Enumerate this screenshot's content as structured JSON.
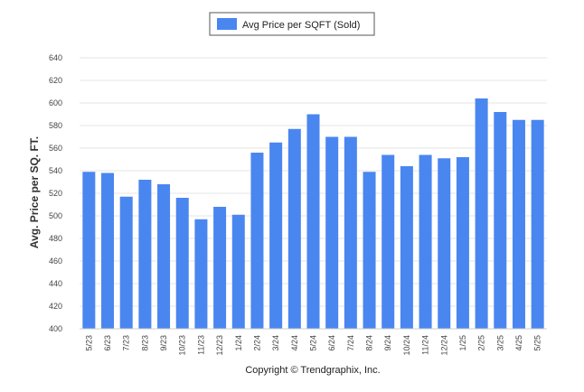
{
  "chart_data": {
    "type": "bar",
    "categories": [
      "5/23",
      "6/23",
      "7/23",
      "8/23",
      "9/23",
      "10/23",
      "11/23",
      "12/23",
      "1/24",
      "2/24",
      "3/24",
      "4/24",
      "5/24",
      "6/24",
      "7/24",
      "8/24",
      "9/24",
      "10/24",
      "11/24",
      "12/24",
      "1/25",
      "2/25",
      "3/25",
      "4/25",
      "5/25"
    ],
    "series": [
      {
        "name": "Avg Price per SQFT (Sold)",
        "color": "#4a86f0",
        "values": [
          539,
          538,
          517,
          532,
          528,
          516,
          497,
          508,
          501,
          556,
          565,
          577,
          590,
          570,
          570,
          539,
          554,
          544,
          554,
          551,
          552,
          604,
          592,
          585,
          585
        ]
      }
    ],
    "ylabel": "Avg. Price per SQ. FT.",
    "xlabel": "",
    "ylim": [
      400,
      640
    ],
    "yticks": [
      400,
      420,
      440,
      460,
      480,
      500,
      520,
      540,
      560,
      580,
      600,
      620,
      640
    ],
    "grid": true,
    "legend_position": "top-center"
  },
  "footer": {
    "copyright": "Copyright © Trendgraphix, Inc."
  }
}
